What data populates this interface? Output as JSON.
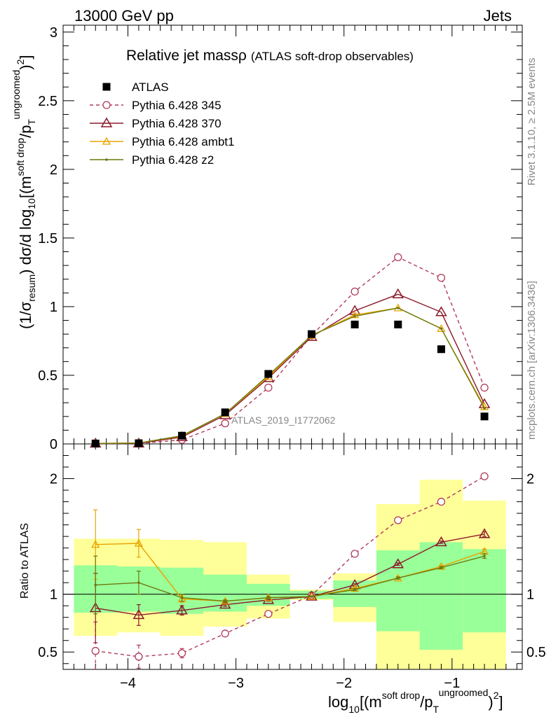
{
  "header": {
    "left": "13000 GeV pp",
    "right": "Jets"
  },
  "side_labels": {
    "rivet": "Rivet 3.1.10, ≥ 2.5M events",
    "mcplots": "mcplots.cern.ch [arXiv:1306.3436]"
  },
  "chart_data": {
    "type": "line",
    "title": "Relative jet massρ",
    "subtitle": "(ATLAS soft-drop observables)",
    "analysis_label": "ATLAS_2019_I1772062",
    "xlabel": "log10[(m^{soft drop}/p_T^{ungroomed})^2]",
    "ylabel": "(1/σ_resum) dσ/d log10[(m^{soft drop}/p_T^{ungroomed})^2]",
    "ratio_ylabel": "Ratio to ATLAS",
    "xlim": [
      -4.6,
      -0.35
    ],
    "ylim": [
      0,
      3.05
    ],
    "ratio_ylim": [
      0.35,
      2.3
    ],
    "x_ticks": [
      -4,
      -3,
      -2,
      -1
    ],
    "x_tick_labels": [
      "−4",
      "−3",
      "−2",
      "−1"
    ],
    "y_ticks": [
      0,
      0.5,
      1,
      1.5,
      2,
      2.5,
      3
    ],
    "y_tick_labels": [
      "0",
      "0.5",
      "1",
      "1.5",
      "2",
      "2.5",
      "3"
    ],
    "ratio_ticks": [
      0.5,
      1,
      2
    ],
    "ratio_tick_labels": [
      "0.5",
      "1",
      "2"
    ],
    "x": [
      -4.3,
      -3.9,
      -3.5,
      -3.1,
      -2.7,
      -2.3,
      -1.9,
      -1.5,
      -1.1,
      -0.7
    ],
    "data": {
      "name": "ATLAS",
      "values": [
        0.003,
        0.005,
        0.06,
        0.23,
        0.51,
        0.8,
        0.87,
        0.87,
        0.69,
        0.2
      ]
    },
    "series": [
      {
        "name": "Pythia 6.428 345",
        "color": "#b03a5b",
        "marker": "circle",
        "dashed": true,
        "values": [
          0.002,
          0.003,
          0.03,
          0.15,
          0.41,
          0.79,
          1.11,
          1.36,
          1.21,
          0.41
        ],
        "ratio": [
          0.51,
          0.46,
          0.49,
          0.66,
          0.83,
          0.99,
          1.35,
          1.64,
          1.8,
          2.02
        ],
        "ratio_err": [
          0.25,
          0.1,
          0.04,
          0.01,
          0.01,
          0.005,
          0.01,
          0.01,
          0.01,
          0.01
        ]
      },
      {
        "name": "Pythia 6.428 370",
        "color": "#8b1a2b",
        "marker": "triangle",
        "dashed": false,
        "values": [
          0.003,
          0.004,
          0.05,
          0.21,
          0.48,
          0.78,
          0.97,
          1.09,
          0.96,
          0.29
        ],
        "ratio": [
          0.88,
          0.82,
          0.86,
          0.91,
          0.95,
          0.98,
          1.08,
          1.26,
          1.45,
          1.52
        ],
        "ratio_err": [
          0.3,
          0.09,
          0.04,
          0.015,
          0.01,
          0.005,
          0.01,
          0.01,
          0.01,
          0.02
        ]
      },
      {
        "name": "Pythia 6.428 ambt1",
        "color": "#e8a400",
        "marker": "triangle-small",
        "dashed": false,
        "values": [
          0.004,
          0.007,
          0.057,
          0.22,
          0.49,
          0.79,
          0.94,
          0.99,
          0.84,
          0.27
        ],
        "ratio": [
          1.43,
          1.44,
          0.96,
          0.94,
          0.97,
          0.98,
          1.05,
          1.14,
          1.24,
          1.37
        ],
        "ratio_err": [
          0.3,
          0.12,
          0.03,
          0.01,
          0.01,
          0.005,
          0.01,
          0.01,
          0.01,
          0.02
        ]
      },
      {
        "name": "Pythia 6.428 z2",
        "color": "#6b7a10",
        "marker": "dot",
        "dashed": false,
        "values": [
          0.003,
          0.006,
          0.06,
          0.22,
          0.5,
          0.79,
          0.93,
          0.99,
          0.84,
          0.26
        ],
        "ratio": [
          1.08,
          1.1,
          0.97,
          0.94,
          0.97,
          0.98,
          1.04,
          1.14,
          1.23,
          1.33
        ],
        "ratio_err": [
          0.25,
          0.1,
          0.03,
          0.01,
          0.01,
          0.005,
          0.01,
          0.01,
          0.01,
          0.02
        ]
      }
    ],
    "bands": {
      "bin_edges": [
        -4.5,
        -4.1,
        -3.7,
        -3.3,
        -2.9,
        -2.5,
        -2.1,
        -1.7,
        -1.3,
        -0.9,
        -0.5
      ],
      "green_low": [
        0.84,
        0.85,
        0.83,
        0.85,
        0.9,
        0.96,
        0.89,
        0.68,
        0.52,
        0.67
      ],
      "green_high": [
        1.25,
        1.24,
        1.23,
        1.17,
        1.09,
        1.03,
        1.12,
        1.38,
        1.45,
        1.39
      ],
      "yellow_low": [
        0.64,
        0.67,
        0.64,
        0.72,
        0.79,
        0.95,
        0.76,
        0.35,
        0.35,
        0.35
      ],
      "yellow_high": [
        1.48,
        1.48,
        1.47,
        1.45,
        1.17,
        1.04,
        1.18,
        1.78,
        1.99,
        1.81
      ],
      "green_color": "#99ff99",
      "yellow_color": "#ffff99"
    }
  }
}
